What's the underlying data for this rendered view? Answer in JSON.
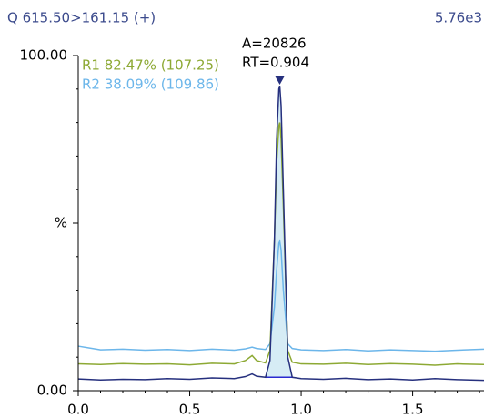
{
  "chart_data": {
    "type": "line",
    "title": "Q 615.50>161.15 (+)",
    "scale_label": "5.76e3",
    "x": [
      0,
      0.1,
      0.2,
      0.3,
      0.4,
      0.5,
      0.6,
      0.7,
      0.75,
      0.78,
      0.8,
      0.84,
      0.86,
      0.88,
      0.89,
      0.9,
      0.904,
      0.91,
      0.92,
      0.94,
      0.96,
      1.0,
      1.1,
      1.2,
      1.3,
      1.4,
      1.5,
      1.6,
      1.7,
      1.82
    ],
    "series": [
      {
        "color": "#26307e",
        "values": [
          3.5,
          3.2,
          3.4,
          3.3,
          3.6,
          3.4,
          3.8,
          3.6,
          4.2,
          5,
          4.3,
          4,
          9,
          45,
          75,
          90,
          91,
          85,
          60,
          10,
          4,
          3.6,
          3.4,
          3.7,
          3.3,
          3.5,
          3.2,
          3.6,
          3.3,
          3.1
        ]
      },
      {
        "name": "R1 82.47% (107.25)",
        "color": "#8da934",
        "values": [
          8,
          7.8,
          8.1,
          7.9,
          8,
          7.7,
          8.2,
          8,
          9,
          10.5,
          9,
          8.3,
          12,
          45,
          68,
          79,
          80,
          75,
          55,
          12,
          8.5,
          8,
          7.9,
          8.2,
          7.8,
          8.1,
          7.9,
          7.6,
          8,
          7.8
        ]
      },
      {
        "name": "R2 38.09% (109.86)",
        "color": "#6cb6ea",
        "values": [
          13.3,
          12.2,
          12.4,
          12.1,
          12.3,
          12,
          12.4,
          12.1,
          12.5,
          13,
          12.6,
          12.3,
          14,
          25,
          36,
          44,
          44.6,
          42,
          30,
          14,
          12.6,
          12.2,
          12,
          12.3,
          11.9,
          12.2,
          12,
          11.8,
          12.1,
          12.4
        ]
      }
    ],
    "annotations": [
      {
        "label": "A=20826"
      },
      {
        "x": 0.904,
        "label": "RT=0.904"
      }
    ],
    "xlim": [
      0,
      1.82
    ],
    "ylim": [
      0,
      100
    ],
    "xticks": [
      {
        "value": 0,
        "label": "0.0"
      },
      0.5,
      {
        "value": 1,
        "label": "1.0"
      },
      1.5
    ],
    "xminorticks": [
      0.1,
      0.2,
      0.3,
      0.4,
      0.6,
      0.7,
      0.8,
      0.9,
      1.1,
      1.2,
      1.3,
      1.4,
      1.6,
      1.7,
      1.8
    ],
    "yticks": [
      {
        "value": 0,
        "label": "0.00"
      },
      {
        "value": 50,
        "label": "%"
      },
      {
        "value": 100,
        "label": "100.00"
      }
    ],
    "yminorticks": [
      10,
      20,
      30,
      40,
      60,
      70,
      80,
      90
    ],
    "fill_color": "#d6ecf5"
  }
}
